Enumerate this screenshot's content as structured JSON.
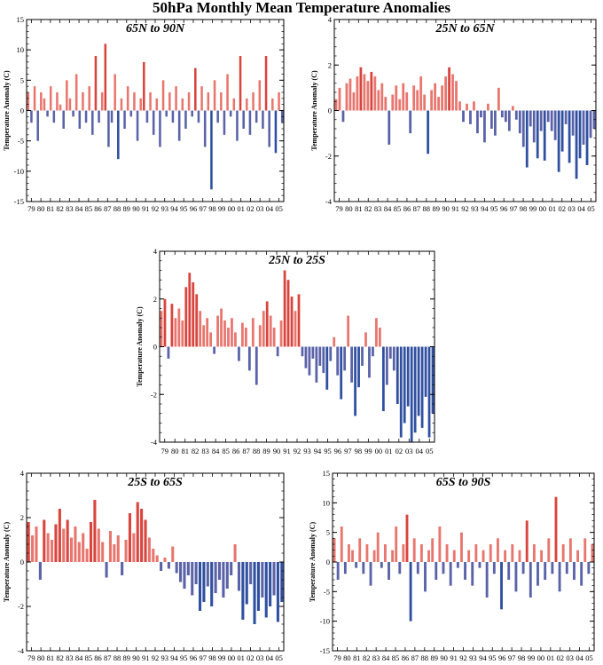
{
  "title": "50hPa Monthly Mean Temperature Anomalies",
  "colors": {
    "positive": "#d9443d",
    "positive_light": "#e8766e",
    "negative": "#5a62a8",
    "negative_dark": "#2f4fa0",
    "frame": "#000000"
  },
  "chart_data": [
    {
      "id": "p1",
      "type": "bar",
      "title": "65N to 90N",
      "ylabel": "Temperature Anomaly (C)",
      "ylim": [
        -15,
        15
      ],
      "yticks": [
        -15,
        -10,
        -5,
        0,
        5,
        10,
        15
      ],
      "xticklabels": [
        "79",
        "80",
        "81",
        "82",
        "83",
        "84",
        "85",
        "86",
        "87",
        "88",
        "89",
        "90",
        "91",
        "92",
        "93",
        "94",
        "95",
        "96",
        "97",
        "98",
        "99",
        "00",
        "01",
        "02",
        "03",
        "04",
        "05"
      ],
      "series": [
        {
          "values": [
            3,
            -2,
            4,
            -5,
            3,
            2,
            -1,
            4,
            -2,
            3,
            1,
            -3,
            5,
            2,
            -1,
            6,
            -3,
            3,
            -2,
            4,
            -4,
            9,
            -2,
            3,
            11,
            -6,
            -2,
            6,
            -8,
            2,
            -3,
            4,
            -1,
            3,
            -5,
            2,
            8,
            -2,
            3,
            -4,
            2,
            -6,
            5,
            -1,
            3,
            -2,
            4,
            -5,
            2,
            -3,
            3,
            -1,
            7,
            -2,
            4,
            -6,
            3,
            -13,
            5,
            -2,
            3,
            -4,
            6,
            -1,
            2,
            -5,
            9,
            -3,
            2,
            -4,
            3,
            -2,
            5,
            -3,
            9,
            -6,
            2,
            -7,
            3,
            -2
          ]
        }
      ]
    },
    {
      "id": "p2",
      "type": "bar",
      "title": "25N to 65N",
      "ylabel": "Temperature Anomaly (C)",
      "ylim": [
        -4,
        4
      ],
      "yticks": [
        -4,
        -2,
        0,
        2,
        4
      ],
      "xticklabels": [
        "79",
        "80",
        "81",
        "82",
        "83",
        "84",
        "85",
        "86",
        "87",
        "88",
        "89",
        "90",
        "91",
        "92",
        "93",
        "94",
        "95",
        "96",
        "97",
        "98",
        "99",
        "00",
        "01",
        "02",
        "03",
        "04",
        "05"
      ],
      "series": [
        {
          "values": [
            0.5,
            1.0,
            -0.5,
            1.2,
            1.4,
            0.8,
            1.5,
            1.9,
            1.6,
            1.3,
            1.7,
            1.5,
            0.9,
            1.2,
            0.6,
            -1.5,
            0.7,
            1.1,
            0.5,
            1.2,
            0.8,
            -1.0,
            1.1,
            0.9,
            1.5,
            0.7,
            -1.9,
            0.9,
            1.2,
            0.6,
            1.1,
            1.5,
            1.9,
            1.6,
            1.3,
            0.4,
            -0.5,
            0.3,
            -0.6,
            0.4,
            -1.0,
            -0.3,
            -1.4,
            0.3,
            -0.8,
            -1.1,
            1.0,
            -0.3,
            -0.5,
            -0.9,
            0.2,
            -0.4,
            -1.0,
            -1.6,
            -2.5,
            -0.7,
            -1.4,
            -2.1,
            -0.9,
            -2.2,
            -0.5,
            -0.9,
            -1.3,
            -2.7,
            -1.8,
            -0.6,
            -2.3,
            -1.1,
            -3.0,
            -2.1,
            -1.5,
            -2.4,
            -1.2,
            -0.8
          ]
        }
      ]
    },
    {
      "id": "p3",
      "type": "bar",
      "title": "25N to 25S",
      "ylabel": "Temperature Anomaly (C)",
      "ylim": [
        -4,
        4
      ],
      "yticks": [
        -4,
        -2,
        0,
        2,
        4
      ],
      "xticklabels": [
        "79",
        "80",
        "81",
        "82",
        "83",
        "84",
        "85",
        "86",
        "87",
        "88",
        "89",
        "90",
        "91",
        "92",
        "93",
        "94",
        "95",
        "96",
        "97",
        "98",
        "99",
        "00",
        "01",
        "02",
        "03",
        "04",
        "05"
      ],
      "series": [
        {
          "values": [
            1.5,
            2.0,
            -0.5,
            1.8,
            1.2,
            1.6,
            1.1,
            2.5,
            3.1,
            2.7,
            2.2,
            1.5,
            0.9,
            1.2,
            0.6,
            -0.3,
            1.3,
            1.6,
            1.1,
            0.8,
            1.2,
            0.6,
            -0.6,
            1.0,
            0.8,
            -1.0,
            1.2,
            -1.6,
            0.9,
            1.5,
            1.9,
            1.3,
            0.8,
            -0.4,
            1.1,
            3.2,
            2.8,
            2.1,
            1.5,
            2.2,
            -0.4,
            -0.9,
            -1.2,
            -0.5,
            -1.5,
            -0.8,
            -1.1,
            -1.8,
            -0.6,
            0.4,
            -1.2,
            -2.2,
            -1.0,
            1.3,
            -1.5,
            -2.9,
            -1.7,
            -0.8,
            0.6,
            -1.3,
            -0.4,
            1.2,
            0.8,
            -2.7,
            -1.6,
            -0.5,
            -1.0,
            -2.4,
            -3.8,
            -3.2,
            -2.5,
            -4.0,
            -3.6,
            -2.9,
            -3.4,
            -2.1,
            -3.8,
            -2.8
          ]
        }
      ]
    },
    {
      "id": "p4",
      "type": "bar",
      "title": "25S to 65S",
      "ylabel": "Temperature Anomaly (C)",
      "ylim": [
        -4,
        4
      ],
      "yticks": [
        -4,
        -2,
        0,
        2,
        4
      ],
      "xticklabels": [
        "79",
        "80",
        "81",
        "82",
        "83",
        "84",
        "85",
        "86",
        "87",
        "88",
        "89",
        "90",
        "91",
        "92",
        "93",
        "94",
        "95",
        "96",
        "97",
        "98",
        "99",
        "00",
        "01",
        "02",
        "03",
        "04",
        "05"
      ],
      "series": [
        {
          "values": [
            1.8,
            1.2,
            1.6,
            -0.8,
            1.9,
            1.3,
            1.0,
            1.7,
            2.4,
            1.5,
            1.9,
            1.1,
            1.6,
            0.9,
            1.3,
            0.6,
            1.8,
            2.8,
            1.5,
            0.9,
            -0.7,
            1.4,
            0.8,
            1.2,
            -0.6,
            1.0,
            2.2,
            1.3,
            2.7,
            2.4,
            1.9,
            1.1,
            0.6,
            0.3,
            -0.4,
            0.2,
            -0.3,
            0.7,
            -0.5,
            -0.9,
            -1.2,
            -0.6,
            -1.5,
            -1.0,
            -2.2,
            -1.8,
            -1.1,
            -2.0,
            -1.4,
            -0.8,
            -1.6,
            -1.2,
            -0.6,
            0.8,
            -1.3,
            -2.6,
            -1.9,
            -1.0,
            -2.8,
            -2.2,
            -1.6,
            -2.5,
            -2.0,
            -1.5,
            -2.7,
            -1.8
          ]
        }
      ]
    },
    {
      "id": "p5",
      "type": "bar",
      "title": "65S to 90S",
      "ylabel": "Temperature Anomaly (C)",
      "ylim": [
        -15,
        15
      ],
      "yticks": [
        -15,
        -10,
        -5,
        0,
        5,
        10,
        15
      ],
      "xticklabels": [
        "79",
        "80",
        "81",
        "82",
        "83",
        "84",
        "85",
        "86",
        "87",
        "88",
        "89",
        "90",
        "91",
        "92",
        "93",
        "94",
        "95",
        "96",
        "97",
        "98",
        "99",
        "00",
        "01",
        "02",
        "03",
        "04",
        "05"
      ],
      "series": [
        {
          "values": [
            4,
            -3,
            6,
            -2,
            3,
            2,
            -1,
            4,
            -2,
            3,
            -4,
            2,
            5,
            -1,
            3,
            -3,
            2,
            6,
            -2,
            3,
            8,
            -10,
            4,
            -2,
            3,
            -5,
            2,
            4,
            -3,
            6,
            -2,
            3,
            -4,
            2,
            -1,
            5,
            -3,
            2,
            -4,
            3,
            -1,
            2,
            -6,
            3,
            -2,
            4,
            -8,
            2,
            -3,
            3,
            -5,
            2,
            -2,
            7,
            -6,
            3,
            -4,
            2,
            -3,
            4,
            -2,
            11,
            -5,
            3,
            -2,
            4,
            -3,
            2,
            -4,
            4,
            -2,
            3
          ]
        }
      ]
    }
  ]
}
